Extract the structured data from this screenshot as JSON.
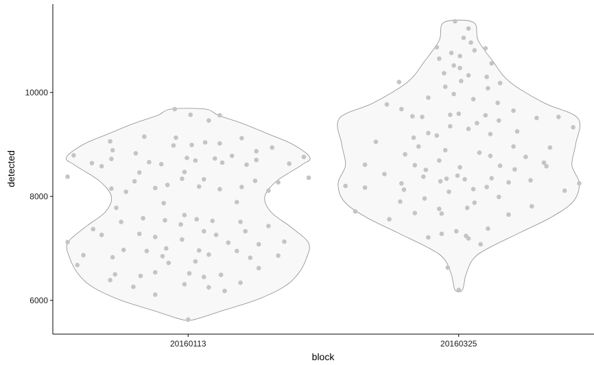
{
  "chart_data": {
    "type": "violin",
    "xlabel": "block",
    "ylabel": "detected",
    "categories": [
      "20160113",
      "20160325"
    ],
    "y_ticks": [
      6000,
      8000,
      10000
    ],
    "y_tick_labels": [
      "6000",
      "8000",
      "10000"
    ],
    "ylim": [
      5350,
      11700
    ],
    "grid": false,
    "legend": "none",
    "colors": {
      "violin_fill": "#f8f8f8",
      "violin_stroke": "#8a8a8a",
      "point": "#c4c4c4",
      "axis": "#000000"
    },
    "violins": [
      {
        "category": "20160113",
        "outline": [
          [
            5630,
            0.05
          ],
          [
            5800,
            0.28
          ],
          [
            6000,
            0.55
          ],
          [
            6250,
            0.78
          ],
          [
            6500,
            0.9
          ],
          [
            6800,
            0.97
          ],
          [
            7100,
            0.99
          ],
          [
            7400,
            0.85
          ],
          [
            7700,
            0.68
          ],
          [
            8000,
            0.63
          ],
          [
            8300,
            0.73
          ],
          [
            8600,
            0.93
          ],
          [
            8750,
            1.0
          ],
          [
            9000,
            0.86
          ],
          [
            9200,
            0.66
          ],
          [
            9400,
            0.45
          ],
          [
            9560,
            0.25
          ],
          [
            9680,
            0.14
          ]
        ],
        "points": [
          [
            9680,
            -0.11
          ],
          [
            9570,
            0.02
          ],
          [
            9560,
            0.26
          ],
          [
            9460,
            0.17
          ],
          [
            9150,
            -0.36
          ],
          [
            9130,
            -0.1
          ],
          [
            9120,
            0.44
          ],
          [
            9060,
            -0.64
          ],
          [
            9040,
            0.14
          ],
          [
            9020,
            0.26
          ],
          [
            8990,
            0.03
          ],
          [
            8980,
            -0.12
          ],
          [
            8940,
            0.69
          ],
          [
            8890,
            -0.62
          ],
          [
            8870,
            0.56
          ],
          [
            8830,
            -0.43
          ],
          [
            8790,
            -0.94
          ],
          [
            8780,
            0.36
          ],
          [
            8760,
            0.95
          ],
          [
            8740,
            -0.01
          ],
          [
            8730,
            0.22
          ],
          [
            8720,
            -0.63
          ],
          [
            8700,
            0.56
          ],
          [
            8690,
            0.06
          ],
          [
            8660,
            -0.32
          ],
          [
            8650,
            0.28
          ],
          [
            8640,
            -0.79
          ],
          [
            8630,
            0.83
          ],
          [
            8620,
            -0.22
          ],
          [
            8610,
            0.48
          ],
          [
            8580,
            -0.71
          ],
          [
            8470,
            -0.03
          ],
          [
            8460,
            -0.4
          ],
          [
            8380,
            -0.99
          ],
          [
            8360,
            0.99
          ],
          [
            8340,
            -0.05
          ],
          [
            8330,
            0.13
          ],
          [
            8300,
            0.55
          ],
          [
            8290,
            -0.44
          ],
          [
            8270,
            0.74
          ],
          [
            8220,
            -0.17
          ],
          [
            8190,
            0.09
          ],
          [
            8180,
            0.44
          ],
          [
            8160,
            -0.27
          ],
          [
            8150,
            -0.63
          ],
          [
            8140,
            0.26
          ],
          [
            8110,
            0.66
          ],
          [
            8090,
            -0.51
          ],
          [
            7890,
            0.4
          ],
          [
            7870,
            -0.2
          ],
          [
            7780,
            -0.59
          ],
          [
            7640,
            -0.03
          ],
          [
            7580,
            -0.37
          ],
          [
            7560,
            0.07
          ],
          [
            7540,
            -0.19
          ],
          [
            7530,
            0.2
          ],
          [
            7510,
            -0.55
          ],
          [
            7510,
            0.43
          ],
          [
            7460,
            -0.06
          ],
          [
            7430,
            0.66
          ],
          [
            7370,
            -0.78
          ],
          [
            7330,
            0.47
          ],
          [
            7330,
            0.13
          ],
          [
            7280,
            -0.4
          ],
          [
            7260,
            -0.71
          ],
          [
            7260,
            0.23
          ],
          [
            7220,
            -0.27
          ],
          [
            7170,
            -0.05
          ],
          [
            7130,
            0.79
          ],
          [
            7120,
            -0.99
          ],
          [
            7110,
            0.33
          ],
          [
            7080,
            0.58
          ],
          [
            7000,
            -0.18
          ],
          [
            6970,
            -0.53
          ],
          [
            6960,
            0.09
          ],
          [
            6950,
            -0.34
          ],
          [
            6950,
            0.4
          ],
          [
            6880,
            0.17
          ],
          [
            6870,
            -0.86
          ],
          [
            6860,
            0.74
          ],
          [
            6850,
            -0.21
          ],
          [
            6830,
            -0.62
          ],
          [
            6820,
            0.51
          ],
          [
            6750,
            0.06
          ],
          [
            6720,
            -0.16
          ],
          [
            6680,
            -0.91
          ],
          [
            6620,
            0.58
          ],
          [
            6540,
            -0.27
          ],
          [
            6520,
            0.01
          ],
          [
            6500,
            -0.6
          ],
          [
            6490,
            0.27
          ],
          [
            6470,
            -0.39
          ],
          [
            6450,
            0.13
          ],
          [
            6390,
            -0.64
          ],
          [
            6340,
            0.43
          ],
          [
            6310,
            -0.03
          ],
          [
            6260,
            -0.45
          ],
          [
            6250,
            0.17
          ],
          [
            6180,
            0.3
          ],
          [
            6110,
            -0.27
          ],
          [
            5630,
            0.0
          ]
        ]
      },
      {
        "category": "20160325",
        "outline": [
          [
            6200,
            0.03
          ],
          [
            6500,
            0.06
          ],
          [
            6800,
            0.12
          ],
          [
            7000,
            0.24
          ],
          [
            7300,
            0.5
          ],
          [
            7600,
            0.76
          ],
          [
            7900,
            0.94
          ],
          [
            8250,
            0.99
          ],
          [
            8600,
            0.93
          ],
          [
            9000,
            0.96
          ],
          [
            9500,
            0.98
          ],
          [
            9800,
            0.7
          ],
          [
            10200,
            0.42
          ],
          [
            10600,
            0.28
          ],
          [
            11000,
            0.16
          ],
          [
            11350,
            0.12
          ]
        ],
        "points": [
          [
            11370,
            -0.03
          ],
          [
            11230,
            0.08
          ],
          [
            11050,
            0.04
          ],
          [
            10960,
            0.1
          ],
          [
            10870,
            -0.18
          ],
          [
            10850,
            0.22
          ],
          [
            10810,
            0.13
          ],
          [
            10760,
            -0.06
          ],
          [
            10700,
            0.01
          ],
          [
            10650,
            -0.16
          ],
          [
            10560,
            0.27
          ],
          [
            10520,
            -0.04
          ],
          [
            10470,
            0.01
          ],
          [
            10370,
            -0.12
          ],
          [
            10330,
            0.08
          ],
          [
            10300,
            0.23
          ],
          [
            10220,
            0.02
          ],
          [
            10200,
            -0.49
          ],
          [
            10180,
            0.34
          ],
          [
            10110,
            -0.11
          ],
          [
            10080,
            0.24
          ],
          [
            9970,
            -0.04
          ],
          [
            9900,
            -0.25
          ],
          [
            9870,
            0.12
          ],
          [
            9800,
            0.32
          ],
          [
            9770,
            -0.59
          ],
          [
            9680,
            -0.47
          ],
          [
            9650,
            0.45
          ],
          [
            9590,
            0.0
          ],
          [
            9570,
            -0.07
          ],
          [
            9560,
            0.22
          ],
          [
            9540,
            -0.38
          ],
          [
            9530,
            -0.3
          ],
          [
            9530,
            0.82
          ],
          [
            9510,
            0.64
          ],
          [
            9460,
            0.33
          ],
          [
            9410,
            0.15
          ],
          [
            9350,
            -0.07
          ],
          [
            9330,
            0.94
          ],
          [
            9300,
            0.08
          ],
          [
            9250,
            0.48
          ],
          [
            9220,
            -0.25
          ],
          [
            9200,
            0.26
          ],
          [
            9170,
            -0.18
          ],
          [
            9130,
            -0.37
          ],
          [
            9050,
            -0.68
          ],
          [
            8960,
            -0.33
          ],
          [
            8960,
            0.45
          ],
          [
            8940,
            0.75
          ],
          [
            8890,
            -0.11
          ],
          [
            8840,
            0.17
          ],
          [
            8810,
            -0.44
          ],
          [
            8780,
            0.26
          ],
          [
            8760,
            0.55
          ],
          [
            8690,
            -0.16
          ],
          [
            8650,
            0.7
          ],
          [
            8610,
            -0.77
          ],
          [
            8600,
            -0.36
          ],
          [
            8590,
            0.34
          ],
          [
            8580,
            0.72
          ],
          [
            8560,
            0.01
          ],
          [
            8520,
            0.46
          ],
          [
            8510,
            -0.27
          ],
          [
            8430,
            -0.61
          ],
          [
            8400,
            -0.01
          ],
          [
            8380,
            -0.29
          ],
          [
            8350,
            0.27
          ],
          [
            8340,
            -0.1
          ],
          [
            8330,
            0.05
          ],
          [
            8310,
            0.59
          ],
          [
            8290,
            -0.15
          ],
          [
            8270,
            0.41
          ],
          [
            8250,
            -0.47
          ],
          [
            8250,
            0.99
          ],
          [
            8200,
            -0.93
          ],
          [
            8180,
            0.23
          ],
          [
            8170,
            -0.77
          ],
          [
            8140,
            0.12
          ],
          [
            8130,
            -0.45
          ],
          [
            8110,
            0.87
          ],
          [
            8090,
            -0.08
          ],
          [
            7990,
            0.33
          ],
          [
            7960,
            -0.28
          ],
          [
            7900,
            -0.48
          ],
          [
            7880,
            0.13
          ],
          [
            7810,
            0.6
          ],
          [
            7780,
            0.07
          ],
          [
            7760,
            -0.16
          ],
          [
            7710,
            -0.85
          ],
          [
            7680,
            -0.36
          ],
          [
            7670,
            -0.14
          ],
          [
            7650,
            0.41
          ],
          [
            7560,
            -0.57
          ],
          [
            7380,
            0.24
          ],
          [
            7330,
            -0.02
          ],
          [
            7280,
            -0.14
          ],
          [
            7240,
            0.06
          ],
          [
            7210,
            -0.25
          ],
          [
            7190,
            0.08
          ],
          [
            7080,
            0.18
          ],
          [
            6630,
            -0.09
          ],
          [
            6200,
            0.0
          ]
        ]
      }
    ]
  }
}
